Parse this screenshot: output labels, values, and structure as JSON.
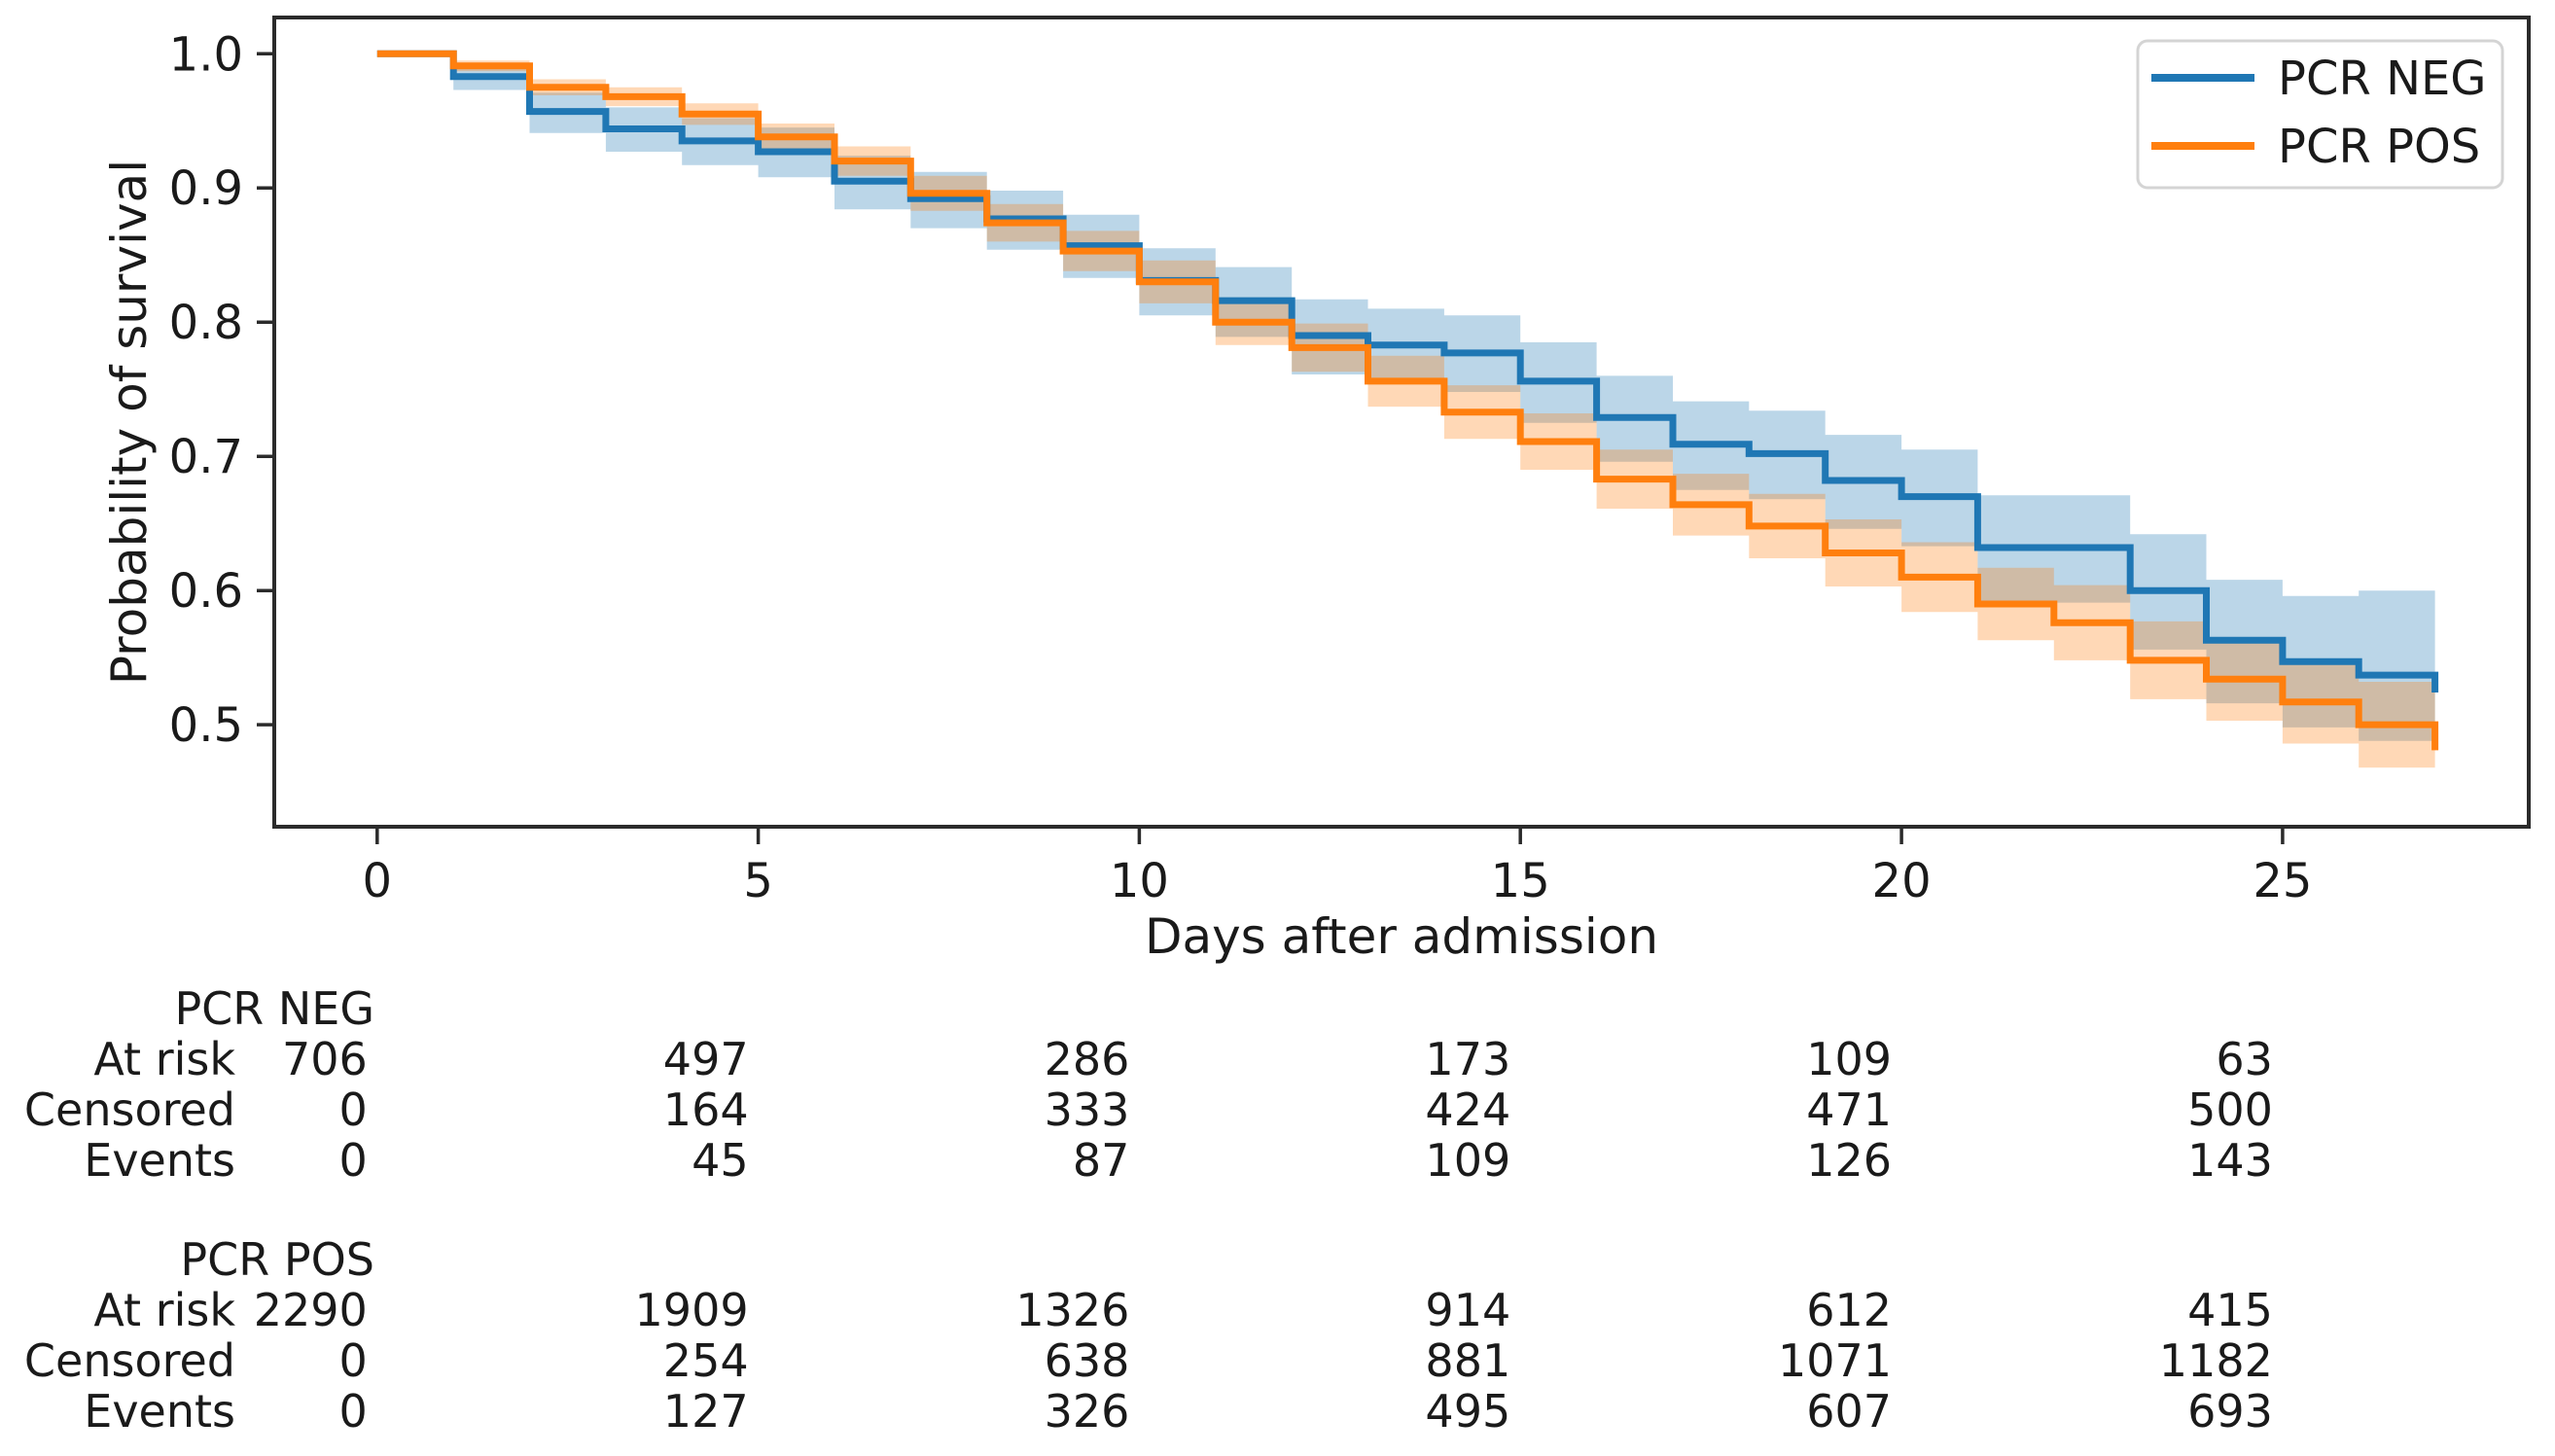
{
  "chart_data": {
    "type": "line",
    "subtype": "kaplan-meier-step",
    "title": "",
    "xlabel": "Days after admission",
    "ylabel": "Probability of survival",
    "xticks": [
      0,
      5,
      10,
      15,
      20,
      25
    ],
    "yticks": [
      1.0,
      0.9,
      0.8,
      0.7,
      0.6,
      0.5
    ],
    "axes": {
      "xlim": [
        -1.35,
        28.23
      ],
      "ylim": [
        0.424,
        1.027
      ]
    },
    "grid": false,
    "band_opacity": 0.3,
    "legend": {
      "position": "upper right",
      "entries": [
        {
          "label": "PCR NEG",
          "color": "#1f77b4"
        },
        {
          "label": "PCR POS",
          "color": "#ff7f0e"
        }
      ]
    },
    "series": [
      {
        "name": "PCR NEG",
        "color": "#1f77b4",
        "t": [
          0,
          1,
          2,
          3,
          4,
          5,
          6,
          7,
          8,
          9,
          10,
          11,
          12,
          13,
          14,
          15,
          16,
          17,
          18,
          19,
          20,
          21,
          23,
          24,
          25,
          26,
          27
        ],
        "s": [
          1.0,
          0.983,
          0.957,
          0.944,
          0.935,
          0.927,
          0.905,
          0.892,
          0.877,
          0.857,
          0.831,
          0.816,
          0.79,
          0.783,
          0.777,
          0.756,
          0.729,
          0.709,
          0.702,
          0.682,
          0.67,
          0.632,
          0.6,
          0.563,
          0.547,
          0.537,
          0.524
        ],
        "lo": [
          1.0,
          0.973,
          0.941,
          0.927,
          0.917,
          0.908,
          0.884,
          0.87,
          0.854,
          0.833,
          0.805,
          0.789,
          0.761,
          0.754,
          0.748,
          0.725,
          0.696,
          0.675,
          0.668,
          0.646,
          0.633,
          0.591,
          0.556,
          0.516,
          0.498,
          0.488,
          0.463
        ],
        "hi": [
          1.0,
          0.992,
          0.971,
          0.96,
          0.952,
          0.945,
          0.924,
          0.912,
          0.898,
          0.88,
          0.855,
          0.841,
          0.817,
          0.81,
          0.805,
          0.785,
          0.76,
          0.741,
          0.734,
          0.716,
          0.705,
          0.671,
          0.642,
          0.608,
          0.596,
          0.6,
          0.601
        ]
      },
      {
        "name": "PCR POS",
        "color": "#ff7f0e",
        "t": [
          0,
          1,
          2,
          3,
          4,
          5,
          6,
          7,
          8,
          9,
          10,
          11,
          12,
          13,
          14,
          15,
          16,
          17,
          18,
          19,
          20,
          21,
          22,
          23,
          24,
          25,
          26,
          27
        ],
        "s": [
          1.0,
          0.991,
          0.975,
          0.968,
          0.955,
          0.938,
          0.92,
          0.896,
          0.874,
          0.853,
          0.83,
          0.8,
          0.781,
          0.756,
          0.733,
          0.711,
          0.683,
          0.664,
          0.648,
          0.628,
          0.61,
          0.59,
          0.576,
          0.548,
          0.534,
          0.517,
          0.5,
          0.481
        ],
        "lo": [
          1.0,
          0.987,
          0.969,
          0.961,
          0.947,
          0.928,
          0.909,
          0.883,
          0.86,
          0.838,
          0.814,
          0.783,
          0.763,
          0.737,
          0.713,
          0.69,
          0.661,
          0.641,
          0.624,
          0.603,
          0.584,
          0.563,
          0.548,
          0.519,
          0.503,
          0.486,
          0.468,
          0.451
        ],
        "hi": [
          1.0,
          0.995,
          0.981,
          0.975,
          0.963,
          0.948,
          0.931,
          0.909,
          0.888,
          0.868,
          0.846,
          0.817,
          0.799,
          0.775,
          0.753,
          0.732,
          0.705,
          0.687,
          0.672,
          0.653,
          0.636,
          0.617,
          0.604,
          0.577,
          0.565,
          0.548,
          0.532,
          0.515
        ]
      }
    ]
  },
  "risk_table": {
    "timepoints": [
      0,
      5,
      10,
      15,
      20,
      25
    ],
    "groups": [
      {
        "name": "PCR NEG",
        "rows": [
          {
            "label": "At risk",
            "values": [
              "706",
              "497",
              "286",
              "173",
              "109",
              "63"
            ]
          },
          {
            "label": "Censored",
            "values": [
              "0",
              "164",
              "333",
              "424",
              "471",
              "500"
            ]
          },
          {
            "label": "Events",
            "values": [
              "0",
              "45",
              "87",
              "109",
              "126",
              "143"
            ]
          }
        ]
      },
      {
        "name": "PCR POS",
        "rows": [
          {
            "label": "At risk",
            "values": [
              "2290",
              "1909",
              "1326",
              "914",
              "612",
              "415"
            ]
          },
          {
            "label": "Censored",
            "values": [
              "0",
              "254",
              "638",
              "881",
              "1071",
              "1182"
            ]
          },
          {
            "label": "Events",
            "values": [
              "0",
              "127",
              "326",
              "495",
              "607",
              "693"
            ]
          }
        ]
      }
    ]
  }
}
